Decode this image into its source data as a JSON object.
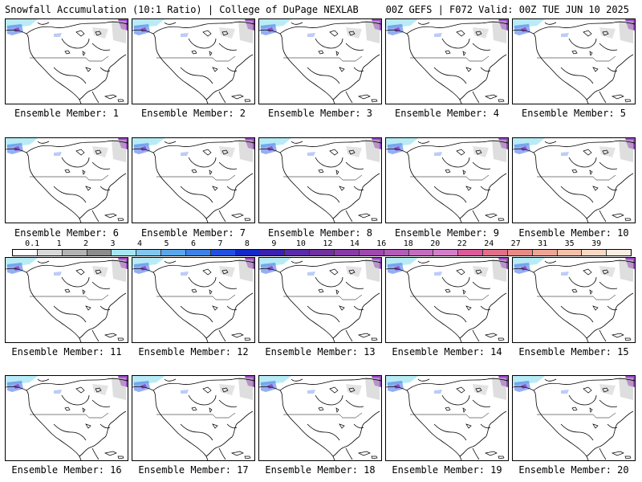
{
  "header": {
    "left": "Snowfall Accumulation (10:1 Ratio) | College of DuPage NEXLAB",
    "right": "00Z GEFS | F072 Valid: 00Z TUE JUN 10 2025"
  },
  "panels": [
    {
      "label": "Ensemble Member: 1"
    },
    {
      "label": "Ensemble Member: 2"
    },
    {
      "label": "Ensemble Member: 3"
    },
    {
      "label": "Ensemble Member: 4"
    },
    {
      "label": "Ensemble Member: 5"
    },
    {
      "label": "Ensemble Member: 6"
    },
    {
      "label": "Ensemble Member: 7"
    },
    {
      "label": "Ensemble Member: 8"
    },
    {
      "label": "Ensemble Member: 9"
    },
    {
      "label": "Ensemble Member: 10"
    },
    {
      "label": "Ensemble Member: 11"
    },
    {
      "label": "Ensemble Member: 12"
    },
    {
      "label": "Ensemble Member: 13"
    },
    {
      "label": "Ensemble Member: 14"
    },
    {
      "label": "Ensemble Member: 15"
    },
    {
      "label": "Ensemble Member: 16"
    },
    {
      "label": "Ensemble Member: 17"
    },
    {
      "label": "Ensemble Member: 18"
    },
    {
      "label": "Ensemble Member: 19"
    },
    {
      "label": "Ensemble Member: 20"
    }
  ],
  "colorbar": {
    "labels": [
      "0.1",
      "1",
      "2",
      "3",
      "4",
      "5",
      "6",
      "7",
      "8",
      "9",
      "10",
      "12",
      "14",
      "16",
      "18",
      "20",
      "22",
      "24",
      "27",
      "31",
      "35",
      "39"
    ],
    "colors": [
      "#ffffff",
      "#d9d9d9",
      "#b3b3b3",
      "#8c8c8c",
      "#a6e6f2",
      "#7fc8f0",
      "#5aa6ec",
      "#3c82e6",
      "#2050e0",
      "#1428c8",
      "#3b1fb0",
      "#5a2aa8",
      "#7030a0",
      "#8a3aa8",
      "#a048b0",
      "#b45ab8",
      "#c66cc0",
      "#d47ec8",
      "#dc5a9a",
      "#e07088",
      "#e88a86",
      "#f0a494",
      "#f6c0aa",
      "#fad8c4",
      "#fdeee2"
    ]
  },
  "colors": {
    "land_outline": "#000000",
    "snow_light": "#c8c8c8",
    "snow_blue": "#3c6ee6",
    "snow_purple": "#8a2ab8"
  }
}
